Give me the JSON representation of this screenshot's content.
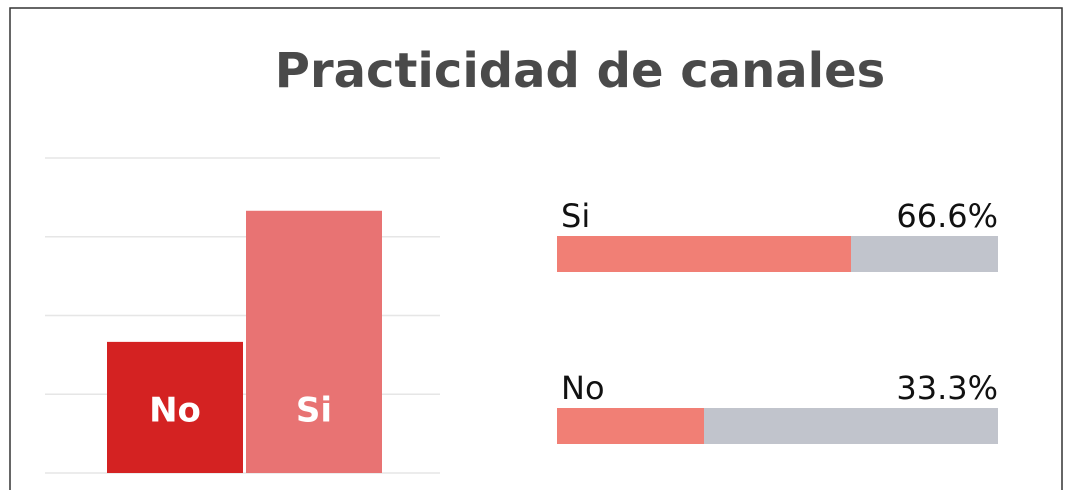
{
  "chart_data": {
    "type": "bar",
    "title": "Practicidad de canales",
    "categories": [
      "No",
      "Si"
    ],
    "values": [
      33.3,
      66.6
    ],
    "value_labels": [
      "33.3%",
      "66.6%"
    ],
    "colors": [
      "#d42222",
      "#e87373"
    ],
    "progress_color": "#f17f75",
    "track_color": "#c1c4cc",
    "ylim": [
      0,
      80
    ],
    "yticks": [
      0,
      20,
      40,
      60,
      80
    ],
    "grid": true
  }
}
